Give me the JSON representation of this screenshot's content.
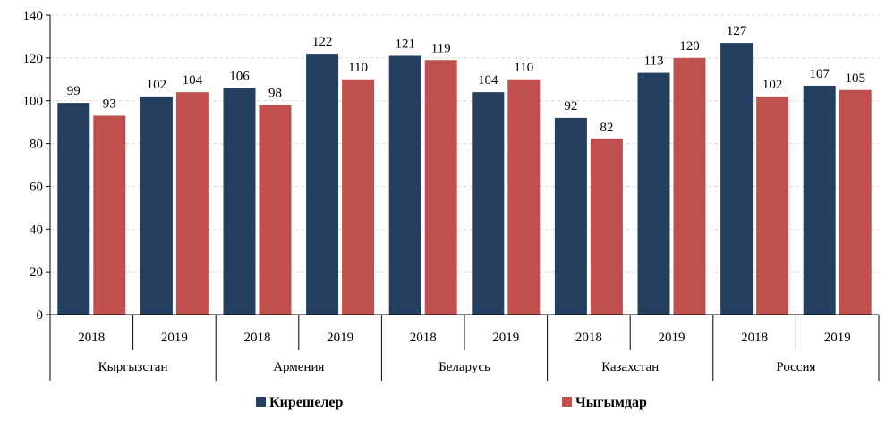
{
  "chart_data": {
    "type": "bar",
    "groups": [
      {
        "country": "Кыргызстан",
        "years": [
          "2018",
          "2019"
        ]
      },
      {
        "country": "Армения",
        "years": [
          "2018",
          "2019"
        ]
      },
      {
        "country": "Беларусь",
        "years": [
          "2018",
          "2019"
        ]
      },
      {
        "country": "Казахстан",
        "years": [
          "2018",
          "2019"
        ]
      },
      {
        "country": "Россия",
        "years": [
          "2018",
          "2019"
        ]
      }
    ],
    "series": [
      {
        "name": "Кирешелер",
        "color": "#243f60",
        "values": [
          99,
          102,
          106,
          122,
          121,
          104,
          92,
          113,
          127,
          107
        ]
      },
      {
        "name": "Чыгымдар",
        "color": "#c0504d",
        "values": [
          93,
          104,
          98,
          110,
          119,
          110,
          82,
          120,
          102,
          105
        ]
      }
    ],
    "ylim": [
      0,
      140
    ],
    "yticks": [
      0,
      20,
      40,
      60,
      80,
      100,
      120,
      140
    ],
    "grid": true,
    "gridline_color": "#d9d9d9",
    "legend_position": "bottom",
    "data_labels": true
  }
}
